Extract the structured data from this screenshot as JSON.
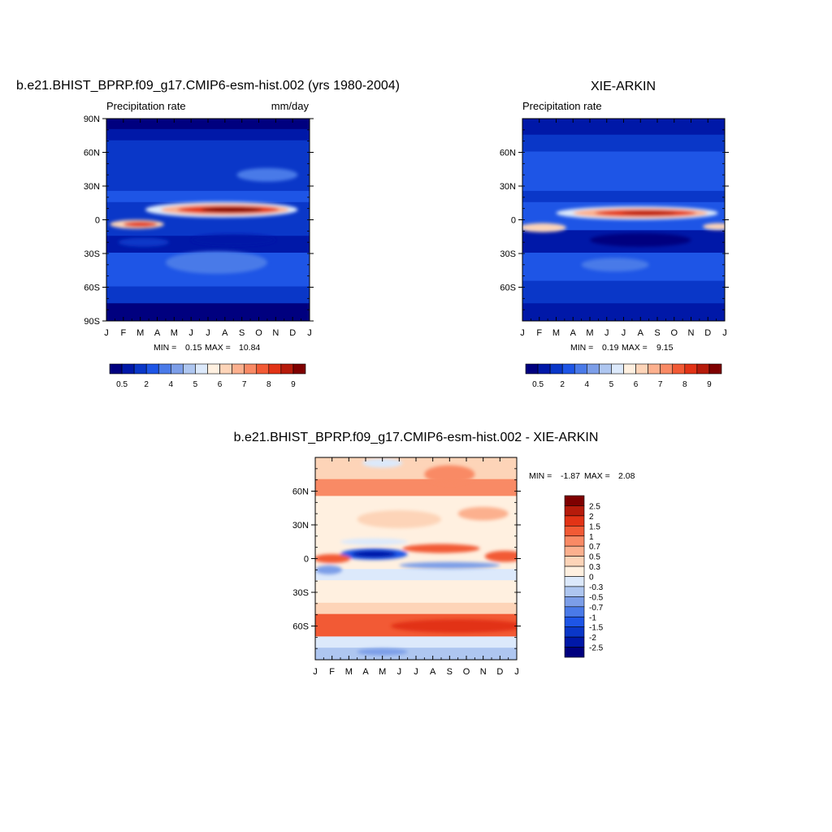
{
  "figure": {
    "width": 1024,
    "height": 1024
  },
  "chart_data": [
    {
      "type": "heatmap",
      "id": "model",
      "title": "b.e21.BHIST_BPRP.f09_g17.CMIP6-esm-hist.002 (yrs 1980-2004)",
      "subtitle_left": "Precipitation rate",
      "subtitle_right": "mm/day",
      "x_tick_labels": [
        "J",
        "F",
        "M",
        "A",
        "M",
        "J",
        "J",
        "A",
        "S",
        "O",
        "N",
        "D",
        "J"
      ],
      "y_ticks": [
        {
          "lat": 90,
          "label": "90N"
        },
        {
          "lat": 60,
          "label": "60N"
        },
        {
          "lat": 30,
          "label": "30N"
        },
        {
          "lat": 0,
          "label": "0"
        },
        {
          "lat": -30,
          "label": "30S"
        },
        {
          "lat": -60,
          "label": "60S"
        },
        {
          "lat": -90,
          "label": "90S"
        }
      ],
      "ylim": [
        -90,
        90
      ],
      "stats": {
        "min_label": "MIN =",
        "min": "0.15",
        "max_label": "MAX =",
        "max": "10.84"
      },
      "colorbar": {
        "orientation": "horizontal",
        "colors": [
          "#00007f",
          "#0018a8",
          "#0a37c8",
          "#1e55e6",
          "#4a7ae8",
          "#7c9ee8",
          "#aec6f0",
          "#dce9fb",
          "#fff0e0",
          "#fdd4b8",
          "#fcb08e",
          "#f98a65",
          "#f25a35",
          "#e23316",
          "#b61b0b",
          "#7f0000"
        ],
        "tick_labels": [
          "0.5",
          "2",
          "4",
          "5",
          "6",
          "7",
          "8",
          "9"
        ]
      },
      "field": {
        "features": [
          {
            "kind": "band",
            "lat_from": 90,
            "lat_to": 80,
            "color_index": 0
          },
          {
            "kind": "band",
            "lat_from": 80,
            "lat_to": 70,
            "color_index": 1
          },
          {
            "kind": "band",
            "lat_from": 70,
            "lat_to": 25,
            "color_index": 2
          },
          {
            "kind": "band",
            "lat_from": 25,
            "lat_to": 15,
            "color_index": 3
          },
          {
            "kind": "band",
            "lat_from": 15,
            "lat_to": -15,
            "color_index": 2
          },
          {
            "kind": "band",
            "lat_from": -15,
            "lat_to": -30,
            "color_index": 1
          },
          {
            "kind": "band",
            "lat_from": -30,
            "lat_to": -60,
            "color_index": 3
          },
          {
            "kind": "band",
            "lat_from": -60,
            "lat_to": -75,
            "color_index": 2
          },
          {
            "kind": "band",
            "lat_from": -75,
            "lat_to": -90,
            "color_index": 0
          },
          {
            "kind": "blob",
            "month": 9.5,
            "lat": 40,
            "rx": 1.8,
            "rlat": 6,
            "color_index": 4
          },
          {
            "kind": "blob",
            "month": 2.2,
            "lat": -20,
            "rx": 1.5,
            "rlat": 4,
            "color_index": 2
          },
          {
            "kind": "blob",
            "month": 6.5,
            "lat": -38,
            "rx": 3,
            "rlat": 10,
            "color_index": 4
          },
          {
            "kind": "blob",
            "month": 7.5,
            "lat": -18,
            "rx": 2.5,
            "rlat": 5,
            "color_index": 1
          },
          {
            "kind": "blob",
            "month": 6.8,
            "lat": 9,
            "rx": 4.5,
            "rlat": 7,
            "color_index": 7
          },
          {
            "kind": "blob",
            "month": 7,
            "lat": 9,
            "rx": 3.8,
            "rlat": 5,
            "color_index": 10
          },
          {
            "kind": "blob",
            "month": 7.2,
            "lat": 9,
            "rx": 3,
            "rlat": 3.5,
            "color_index": 13
          },
          {
            "kind": "blob",
            "month": 7.4,
            "lat": 9,
            "rx": 1.8,
            "rlat": 2.2,
            "color_index": 15
          },
          {
            "kind": "blob",
            "month": 1.8,
            "lat": -4,
            "rx": 1.6,
            "rlat": 4,
            "color_index": 9
          },
          {
            "kind": "blob",
            "month": 2,
            "lat": -4,
            "rx": 1,
            "rlat": 2.5,
            "color_index": 13
          }
        ]
      }
    },
    {
      "type": "heatmap",
      "id": "obs",
      "title": "XIE-ARKIN",
      "subtitle_left": "Precipitation rate",
      "x_tick_labels": [
        "J",
        "F",
        "M",
        "A",
        "M",
        "J",
        "J",
        "A",
        "S",
        "O",
        "N",
        "D",
        "J"
      ],
      "y_ticks": [
        {
          "lat": 60,
          "label": "60N"
        },
        {
          "lat": 30,
          "label": "30N"
        },
        {
          "lat": 0,
          "label": "0"
        },
        {
          "lat": -30,
          "label": "30S"
        },
        {
          "lat": -60,
          "label": "60S"
        }
      ],
      "ylim": [
        -90,
        90
      ],
      "stats": {
        "min_label": "MIN =",
        "min": "0.19",
        "max_label": "MAX =",
        "max": "9.15"
      },
      "colorbar": {
        "orientation": "horizontal",
        "colors": [
          "#00007f",
          "#0018a8",
          "#0a37c8",
          "#1e55e6",
          "#4a7ae8",
          "#7c9ee8",
          "#aec6f0",
          "#dce9fb",
          "#fff0e0",
          "#fdd4b8",
          "#fcb08e",
          "#f98a65",
          "#f25a35",
          "#e23316",
          "#b61b0b",
          "#7f0000"
        ],
        "tick_labels": [
          "0.5",
          "2",
          "4",
          "5",
          "6",
          "7",
          "8",
          "9"
        ]
      },
      "field": {
        "features": [
          {
            "kind": "band",
            "lat_from": 90,
            "lat_to": 75,
            "color_index": 1
          },
          {
            "kind": "band",
            "lat_from": 75,
            "lat_to": 60,
            "color_index": 2
          },
          {
            "kind": "band",
            "lat_from": 60,
            "lat_to": 25,
            "color_index": 3
          },
          {
            "kind": "band",
            "lat_from": 25,
            "lat_to": 15,
            "color_index": 2
          },
          {
            "kind": "band",
            "lat_from": 15,
            "lat_to": -10,
            "color_index": 3
          },
          {
            "kind": "band",
            "lat_from": -10,
            "lat_to": -30,
            "color_index": 1
          },
          {
            "kind": "band",
            "lat_from": -30,
            "lat_to": -55,
            "color_index": 3
          },
          {
            "kind": "band",
            "lat_from": -55,
            "lat_to": -75,
            "color_index": 2
          },
          {
            "kind": "band",
            "lat_from": -75,
            "lat_to": -90,
            "color_index": 1
          },
          {
            "kind": "blob",
            "month": 5.5,
            "lat": -40,
            "rx": 2,
            "rlat": 6,
            "color_index": 4
          },
          {
            "kind": "blob",
            "month": 7,
            "lat": -18,
            "rx": 3,
            "rlat": 6,
            "color_index": 0
          },
          {
            "kind": "blob",
            "month": 6.8,
            "lat": 6,
            "rx": 4.8,
            "rlat": 6,
            "color_index": 7
          },
          {
            "kind": "blob",
            "month": 7,
            "lat": 6,
            "rx": 4,
            "rlat": 4.5,
            "color_index": 10
          },
          {
            "kind": "blob",
            "month": 7.3,
            "lat": 6,
            "rx": 3,
            "rlat": 3,
            "color_index": 13
          },
          {
            "kind": "blob",
            "month": 7.5,
            "lat": 6,
            "rx": 1.6,
            "rlat": 1.8,
            "color_index": 14
          },
          {
            "kind": "blob",
            "month": 1.2,
            "lat": -7,
            "rx": 1.4,
            "rlat": 4,
            "color_index": 9
          },
          {
            "kind": "blob",
            "month": 11.6,
            "lat": -6,
            "rx": 0.9,
            "rlat": 3,
            "color_index": 9
          }
        ]
      }
    },
    {
      "type": "heatmap",
      "id": "diff",
      "title": "b.e21.BHIST_BPRP.f09_g17.CMIP6-esm-hist.002 - XIE-ARKIN",
      "x_tick_labels": [
        "J",
        "F",
        "M",
        "A",
        "M",
        "J",
        "J",
        "A",
        "S",
        "O",
        "N",
        "D",
        "J"
      ],
      "y_ticks": [
        {
          "lat": 60,
          "label": "60N"
        },
        {
          "lat": 30,
          "label": "30N"
        },
        {
          "lat": 0,
          "label": "0"
        },
        {
          "lat": -30,
          "label": "30S"
        },
        {
          "lat": -60,
          "label": "60S"
        }
      ],
      "ylim": [
        -90,
        90
      ],
      "stats": {
        "min_label": "MIN =",
        "min": "-1.87",
        "max_label": "MAX =",
        "max": "2.08"
      },
      "colorbar": {
        "orientation": "vertical",
        "colors": [
          "#7f0000",
          "#b61b0b",
          "#e23316",
          "#f25a35",
          "#f98a65",
          "#fcb08e",
          "#fdd4b8",
          "#fff0e0",
          "#dce9fb",
          "#aec6f0",
          "#7c9ee8",
          "#4a7ae8",
          "#1e55e6",
          "#0a37c8",
          "#0018a8",
          "#00007f"
        ],
        "tick_labels": [
          "2.5",
          "2",
          "1.5",
          "1",
          "0.7",
          "0.5",
          "0.3",
          "0",
          "-0.3",
          "-0.5",
          "-0.7",
          "-1",
          "-1.5",
          "-2",
          "-2.5"
        ]
      },
      "field": {
        "features": [
          {
            "kind": "band",
            "lat_from": 90,
            "lat_to": 70,
            "color_index": 6
          },
          {
            "kind": "band",
            "lat_from": 70,
            "lat_to": 55,
            "color_index": 4
          },
          {
            "kind": "band",
            "lat_from": 55,
            "lat_to": 20,
            "color_index": 7
          },
          {
            "kind": "band",
            "lat_from": 20,
            "lat_to": 5,
            "color_index": 7
          },
          {
            "kind": "band",
            "lat_from": 5,
            "lat_to": -10,
            "color_index": 7
          },
          {
            "kind": "band",
            "lat_from": -10,
            "lat_to": -20,
            "color_index": 8
          },
          {
            "kind": "band",
            "lat_from": -20,
            "lat_to": -40,
            "color_index": 7
          },
          {
            "kind": "band",
            "lat_from": -40,
            "lat_to": -50,
            "color_index": 6
          },
          {
            "kind": "band",
            "lat_from": -50,
            "lat_to": -70,
            "color_index": 3
          },
          {
            "kind": "band",
            "lat_from": -70,
            "lat_to": -80,
            "color_index": 8
          },
          {
            "kind": "band",
            "lat_from": -80,
            "lat_to": -90,
            "color_index": 9
          },
          {
            "kind": "blob",
            "month": 8,
            "lat": 75,
            "rx": 1.5,
            "rlat": 8,
            "color_index": 4
          },
          {
            "kind": "blob",
            "month": 4,
            "lat": 85,
            "rx": 1.2,
            "rlat": 4,
            "color_index": 8
          },
          {
            "kind": "blob",
            "month": 5,
            "lat": 35,
            "rx": 2.5,
            "rlat": 8,
            "color_index": 6
          },
          {
            "kind": "blob",
            "month": 10,
            "lat": 40,
            "rx": 1.5,
            "rlat": 6,
            "color_index": 5
          },
          {
            "kind": "blob",
            "month": 3.5,
            "lat": 15,
            "rx": 2,
            "rlat": 3,
            "color_index": 8
          },
          {
            "kind": "blob",
            "month": 3.5,
            "lat": 4,
            "rx": 2,
            "rlat": 5,
            "color_index": 12
          },
          {
            "kind": "blob",
            "month": 3.5,
            "lat": 4,
            "rx": 1.3,
            "rlat": 3,
            "color_index": 14
          },
          {
            "kind": "blob",
            "month": 7.5,
            "lat": 9,
            "rx": 2.3,
            "rlat": 4,
            "color_index": 3
          },
          {
            "kind": "blob",
            "month": 11.3,
            "lat": 2,
            "rx": 1.2,
            "rlat": 5,
            "color_index": 3
          },
          {
            "kind": "blob",
            "month": 1,
            "lat": 0,
            "rx": 1.1,
            "rlat": 4,
            "color_index": 3
          },
          {
            "kind": "blob",
            "month": 8,
            "lat": -6,
            "rx": 3,
            "rlat": 3,
            "color_index": 10
          },
          {
            "kind": "blob",
            "month": 0.8,
            "lat": -10,
            "rx": 0.8,
            "rlat": 4,
            "color_index": 10
          },
          {
            "kind": "blob",
            "month": 8.5,
            "lat": -60,
            "rx": 4,
            "rlat": 6,
            "color_index": 2
          },
          {
            "kind": "blob",
            "month": 4,
            "lat": -83,
            "rx": 1.5,
            "rlat": 3,
            "color_index": 10
          }
        ]
      }
    }
  ]
}
